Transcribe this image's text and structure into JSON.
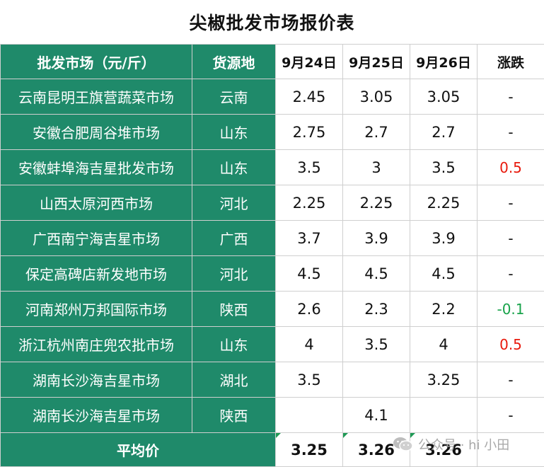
{
  "title": "尖椒批发市场报价表",
  "headers": {
    "market": "批发市场（元/斤）",
    "origin": "货源地",
    "d1": "9月24日",
    "d2": "9月25日",
    "d3": "9月26日",
    "change": "涨跌"
  },
  "rows": [
    {
      "market": "云南昆明王旗营蔬菜市场",
      "origin": "云南",
      "d1": "2.45",
      "d2": "3.05",
      "d3": "3.05",
      "change": "-"
    },
    {
      "market": "安徽合肥周谷堆市场",
      "origin": "山东",
      "d1": "2.75",
      "d2": "2.7",
      "d3": "2.7",
      "change": "-"
    },
    {
      "market": "安徽蚌埠海吉星批发市场",
      "origin": "山东",
      "d1": "3.5",
      "d2": "3",
      "d3": "3.5",
      "change": "0.5"
    },
    {
      "market": "山西太原河西市场",
      "origin": "河北",
      "d1": "2.25",
      "d2": "2.25",
      "d3": "2.25",
      "change": "-"
    },
    {
      "market": "广西南宁海吉星市场",
      "origin": "广西",
      "d1": "3.7",
      "d2": "3.9",
      "d3": "3.9",
      "change": "-"
    },
    {
      "market": "保定高碑店新发地市场",
      "origin": "河北",
      "d1": "4.5",
      "d2": "4.5",
      "d3": "4.5",
      "change": "-"
    },
    {
      "market": "河南郑州万邦国际市场",
      "origin": "陕西",
      "d1": "2.6",
      "d2": "2.3",
      "d3": "2.2",
      "change": "-0.1"
    },
    {
      "market": "浙江杭州南庄兜农批市场",
      "origin": "山东",
      "d1": "4",
      "d2": "3.5",
      "d3": "4",
      "change": "0.5"
    },
    {
      "market": "湖南长沙海吉星市场",
      "origin": "湖北",
      "d1": "3.5",
      "d2": "",
      "d3": "3.25",
      "change": "-"
    },
    {
      "market": "湖南长沙海吉星市场",
      "origin": "陕西",
      "d1": "",
      "d2": "4.1",
      "d3": "",
      "change": "-"
    }
  ],
  "average": {
    "label": "平均价",
    "d1": "3.25",
    "d2": "3.26",
    "d3": "3.26",
    "change": ""
  },
  "watermark": {
    "text": "公众号 · hi 小田"
  },
  "colors": {
    "header_green": "#1f8a6a",
    "up": "#e8190c",
    "down": "#18a34a"
  }
}
